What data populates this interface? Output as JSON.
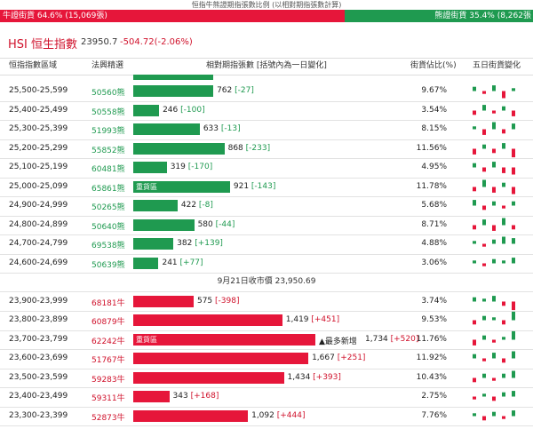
{
  "caption": "恒指牛熊證期指張數比例 (以相對期指張數計算)",
  "ratio": {
    "bull_label": "牛證街貨 64.6% (15,069張)",
    "bull_pct": 64.6,
    "bear_label": "熊證街貨 35.4% (8,262張",
    "bear_pct": 35.4
  },
  "hsi": {
    "title": "HSI 恒生指數",
    "price": "23950.7",
    "change": "-504.72(-2.06%)"
  },
  "headers": {
    "range": "恒指指數區域",
    "code": "法興精選",
    "contracts": "相對期指張數 [括號內為一日變化]",
    "share": "街貨佔比(%)",
    "trend": "五日街貨變化"
  },
  "colors": {
    "bull": "#e6163a",
    "bear": "#1f9a50"
  },
  "close_label": "9月21日收市價 23,950.69",
  "max_contracts": 1734,
  "bear_rows": [
    {
      "range": "25,500-25,599",
      "code": "50560熊",
      "value": "762",
      "delta": "[-27]",
      "num": 762,
      "pct": "9.67%",
      "spark": [
        3,
        -2,
        4,
        -5,
        2
      ]
    },
    {
      "range": "25,400-25,499",
      "code": "50558熊",
      "value": "246",
      "delta": "[-100]",
      "num": 246,
      "pct": "3.54%",
      "spark": [
        -3,
        4,
        -2,
        3,
        -4
      ]
    },
    {
      "range": "25,300-25,399",
      "code": "51993熊",
      "value": "633",
      "delta": "[-13]",
      "num": 633,
      "pct": "8.15%",
      "spark": [
        2,
        -4,
        5,
        -3,
        4
      ]
    },
    {
      "range": "25,200-25,299",
      "code": "55852熊",
      "value": "868",
      "delta": "[-233]",
      "num": 868,
      "pct": "11.56%",
      "spark": [
        -4,
        3,
        -3,
        4,
        -6
      ]
    },
    {
      "range": "25,100-25,199",
      "code": "60481熊",
      "value": "319",
      "delta": "[-170]",
      "num": 319,
      "pct": "4.95%",
      "spark": [
        3,
        -3,
        4,
        -4,
        -5
      ]
    },
    {
      "range": "25,000-25,099",
      "code": "65861熊",
      "value": "921",
      "delta": "[-143]",
      "num": 921,
      "pct": "11.78%",
      "label": "重貨區",
      "spark": [
        -3,
        5,
        -4,
        3,
        -5
      ]
    },
    {
      "range": "24,900-24,999",
      "code": "50265熊",
      "value": "422",
      "delta": "[-8]",
      "num": 422,
      "pct": "5.68%",
      "spark": [
        4,
        -3,
        3,
        -2,
        3
      ]
    },
    {
      "range": "24,800-24,899",
      "code": "50640熊",
      "value": "580",
      "delta": "[-44]",
      "num": 580,
      "pct": "8.71%",
      "spark": [
        -3,
        4,
        -4,
        5,
        -3
      ]
    },
    {
      "range": "24,700-24,799",
      "code": "69538熊",
      "value": "382",
      "delta": "[+139]",
      "num": 382,
      "pct": "4.88%",
      "spark": [
        2,
        -2,
        3,
        5,
        4
      ]
    },
    {
      "range": "24,600-24,699",
      "code": "50639熊",
      "value": "241",
      "delta": "[+77]",
      "num": 241,
      "pct": "3.06%",
      "spark": [
        2,
        -2,
        3,
        2,
        4
      ]
    }
  ],
  "bull_rows": [
    {
      "range": "23,900-23,999",
      "code": "68181牛",
      "value": "575",
      "delta": "[-398]",
      "num": 575,
      "pct": "3.74%",
      "spark": [
        3,
        2,
        4,
        -3,
        -6
      ]
    },
    {
      "range": "23,800-23,899",
      "code": "60879牛",
      "value": "1,419",
      "delta": "[+451]",
      "num": 1419,
      "pct": "9.53%",
      "spark": [
        -3,
        3,
        2,
        -3,
        6
      ]
    },
    {
      "range": "23,700-23,799",
      "code": "62242牛",
      "value": "1,734",
      "delta": "[+520]",
      "num": 1734,
      "pct": "11.76%",
      "label": "重貨區",
      "tag": "▲最多新增",
      "spark": [
        -4,
        3,
        -2,
        2,
        6
      ]
    },
    {
      "range": "23,600-23,699",
      "code": "51767牛",
      "value": "1,667",
      "delta": "[+251]",
      "num": 1667,
      "pct": "11.92%",
      "spark": [
        3,
        -2,
        4,
        -3,
        5
      ]
    },
    {
      "range": "23,500-23,599",
      "code": "59283牛",
      "value": "1,434",
      "delta": "[+393]",
      "num": 1434,
      "pct": "10.43%",
      "spark": [
        -3,
        3,
        -2,
        3,
        5
      ]
    },
    {
      "range": "23,400-23,499",
      "code": "59311牛",
      "value": "343",
      "delta": "[+168]",
      "num": 343,
      "pct": "2.75%",
      "spark": [
        -2,
        2,
        -3,
        3,
        4
      ]
    },
    {
      "range": "23,300-23,399",
      "code": "52873牛",
      "value": "1,092",
      "delta": "[+444]",
      "num": 1092,
      "pct": "7.76%",
      "spark": [
        2,
        -3,
        3,
        -2,
        4
      ]
    }
  ]
}
